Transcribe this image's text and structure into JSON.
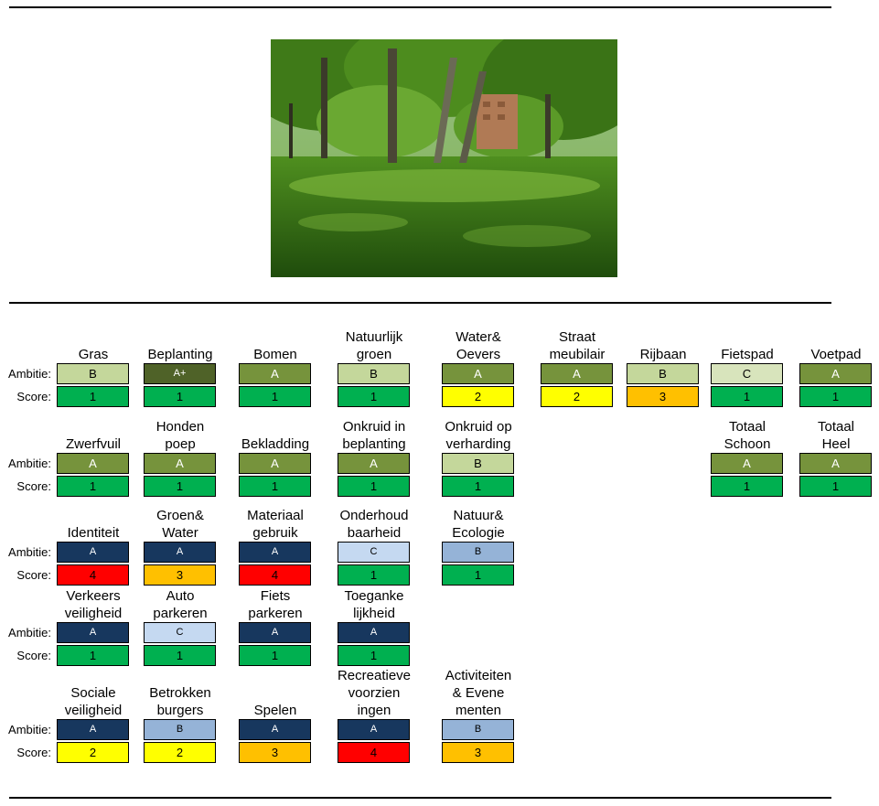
{
  "labels": {
    "ambitie": "Ambitie:",
    "score": "Score:"
  },
  "photo": {
    "icon": "park-photo"
  },
  "rows": [
    {
      "items": [
        {
          "title": "Gras",
          "ambitie": "B",
          "score": "1",
          "amb_color": "lightgreen",
          "score_color": "green"
        },
        {
          "title": "Beplanting",
          "ambitie": "A+",
          "score": "1",
          "amb_color": "darkolive",
          "score_color": "green"
        },
        {
          "title": "Bomen",
          "ambitie": "A",
          "score": "1",
          "amb_color": "olive",
          "score_color": "green"
        },
        {
          "title": "Natuurlijk\ngroen",
          "ambitie": "B",
          "score": "1",
          "amb_color": "lightgreen",
          "score_color": "green"
        },
        {
          "title": "Water&\nOevers",
          "ambitie": "A",
          "score": "2",
          "amb_color": "olive",
          "score_color": "yellow"
        },
        {
          "title": "Straat\nmeubilair",
          "ambitie": "A",
          "score": "2",
          "amb_color": "olive",
          "score_color": "yellow"
        },
        {
          "title": "Rijbaan",
          "ambitie": "B",
          "score": "3",
          "amb_color": "lightgreen",
          "score_color": "orange"
        },
        {
          "title": "Fietspad",
          "ambitie": "C",
          "score": "1",
          "amb_color": "palegreen",
          "score_color": "green"
        },
        {
          "title": "Voetpad",
          "ambitie": "A",
          "score": "1",
          "amb_color": "olive",
          "score_color": "green"
        }
      ]
    },
    {
      "items": [
        {
          "title": "Zwerfvuil",
          "ambitie": "A",
          "score": "1",
          "amb_color": "olive",
          "score_color": "green"
        },
        {
          "title": "Honden\npoep",
          "ambitie": "A",
          "score": "1",
          "amb_color": "olive",
          "score_color": "green"
        },
        {
          "title": "Bekladding",
          "ambitie": "A",
          "score": "1",
          "amb_color": "olive",
          "score_color": "green"
        },
        {
          "title": "Onkruid in\nbeplanting",
          "ambitie": "A",
          "score": "1",
          "amb_color": "olive",
          "score_color": "green"
        },
        {
          "title": "Onkruid op\nverharding",
          "ambitie": "B",
          "score": "1",
          "amb_color": "lightgreen",
          "score_color": "green"
        },
        {
          "title": "Totaal\nSchoon",
          "ambitie": "A",
          "score": "1",
          "amb_color": "olive",
          "score_color": "green"
        },
        {
          "title": "Totaal\nHeel",
          "ambitie": "A",
          "score": "1",
          "amb_color": "olive",
          "score_color": "green"
        }
      ]
    },
    {
      "items": [
        {
          "title": "Identiteit",
          "ambitie": "A",
          "score": "4",
          "amb_color": "navy",
          "score_color": "red"
        },
        {
          "title": "Groen&\nWater",
          "ambitie": "A",
          "score": "3",
          "amb_color": "navy",
          "score_color": "orange"
        },
        {
          "title": "Materiaal\ngebruik",
          "ambitie": "A",
          "score": "4",
          "amb_color": "navy",
          "score_color": "red"
        },
        {
          "title": "Onderhoud\nbaarheid",
          "ambitie": "C",
          "score": "1",
          "amb_color": "lightblue",
          "score_color": "green"
        },
        {
          "title": "Natuur&\nEcologie",
          "ambitie": "B",
          "score": "1",
          "amb_color": "midblue",
          "score_color": "green"
        }
      ]
    },
    {
      "items": [
        {
          "title": "Verkeers\nveiligheid",
          "ambitie": "A",
          "score": "1",
          "amb_color": "navy",
          "score_color": "green"
        },
        {
          "title": "Auto\nparkeren",
          "ambitie": "C",
          "score": "1",
          "amb_color": "lightblue",
          "score_color": "green"
        },
        {
          "title": "Fiets\nparkeren",
          "ambitie": "A",
          "score": "1",
          "amb_color": "navy",
          "score_color": "green"
        },
        {
          "title": "Toeganke\nlijkheid",
          "ambitie": "A",
          "score": "1",
          "amb_color": "navy",
          "score_color": "green"
        }
      ]
    },
    {
      "items": [
        {
          "title": "Sociale\nveiligheid",
          "ambitie": "A",
          "score": "2",
          "amb_color": "navy",
          "score_color": "yellow"
        },
        {
          "title": "Betrokken\nburgers",
          "ambitie": "B",
          "score": "2",
          "amb_color": "midblue",
          "score_color": "yellow"
        },
        {
          "title": "Spelen",
          "ambitie": "A",
          "score": "3",
          "amb_color": "navy",
          "score_color": "orange"
        },
        {
          "title": "Recreatieve\nvoorzien\ningen",
          "ambitie": "A",
          "score": "4",
          "amb_color": "navy",
          "score_color": "red"
        },
        {
          "title": "Activiteiten\n& Evene\nmenten",
          "ambitie": "B",
          "score": "3",
          "amb_color": "midblue",
          "score_color": "orange"
        }
      ]
    }
  ]
}
